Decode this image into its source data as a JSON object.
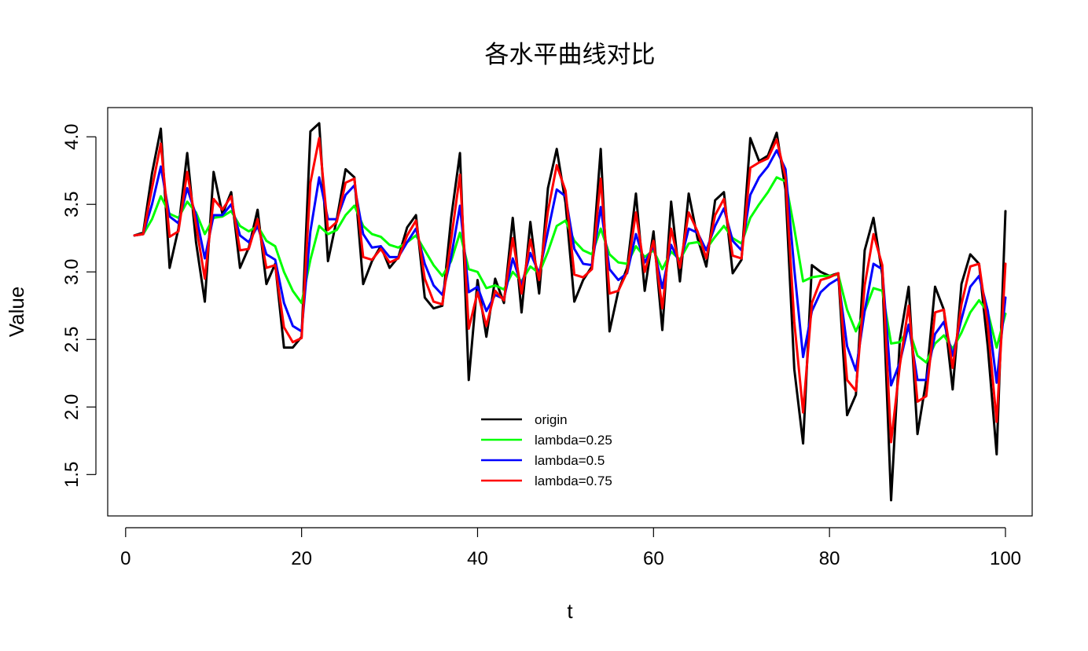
{
  "chart_data": {
    "type": "line",
    "title": "各水平曲线对比",
    "xlabel": "t",
    "ylabel": "Value",
    "xlim": [
      1,
      100
    ],
    "ylim": [
      1.31,
      4.1
    ],
    "x_ticks": [
      0,
      20,
      40,
      60,
      80,
      100
    ],
    "x_tick_labels": [
      "0",
      "20",
      "40",
      "60",
      "80",
      "100"
    ],
    "y_ticks": [
      1.5,
      2.0,
      2.5,
      3.0,
      3.5,
      4.0
    ],
    "y_tick_labels": [
      "1.5",
      "2.0",
      "2.5",
      "3.0",
      "3.5",
      "4.0"
    ],
    "legend_position": "bottom-center",
    "grid": false,
    "series": [
      {
        "name": "origin",
        "color": "#000000",
        "values": [
          3.27,
          3.29,
          3.73,
          4.06,
          3.03,
          3.32,
          3.88,
          3.22,
          2.78,
          3.74,
          3.43,
          3.59,
          3.03,
          3.18,
          3.46,
          2.91,
          3.06,
          2.44,
          2.44,
          2.52,
          4.04,
          4.1,
          3.08,
          3.39,
          3.76,
          3.7,
          2.91,
          3.08,
          3.19,
          3.03,
          3.11,
          3.33,
          3.42,
          2.81,
          2.73,
          2.75,
          3.4,
          3.88,
          2.2,
          2.94,
          2.52,
          2.95,
          2.77,
          3.4,
          2.7,
          3.37,
          2.84,
          3.62,
          3.91,
          3.51,
          2.78,
          2.94,
          3.04,
          3.91,
          2.56,
          2.86,
          3.03,
          3.58,
          2.86,
          3.3,
          2.57,
          3.52,
          2.93,
          3.58,
          3.25,
          3.04,
          3.53,
          3.59,
          2.99,
          3.09,
          3.99,
          3.82,
          3.86,
          4.03,
          3.61,
          2.28,
          1.73,
          3.05,
          3.0,
          2.97,
          2.99,
          1.94,
          2.09,
          3.16,
          3.4,
          2.98,
          1.31,
          2.5,
          2.89,
          1.8,
          2.2,
          2.89,
          2.72,
          2.13,
          2.91,
          3.13,
          3.06,
          2.44,
          1.65,
          3.45
        ]
      },
      {
        "name": "lambda=0.25",
        "color": "#00ff00",
        "values": [
          3.27,
          3.28,
          3.39,
          3.56,
          3.43,
          3.4,
          3.52,
          3.44,
          3.28,
          3.4,
          3.41,
          3.45,
          3.34,
          3.3,
          3.34,
          3.23,
          3.19,
          3.0,
          2.86,
          2.77,
          3.09,
          3.34,
          3.28,
          3.31,
          3.42,
          3.49,
          3.34,
          3.28,
          3.26,
          3.2,
          3.18,
          3.22,
          3.27,
          3.16,
          3.05,
          2.97,
          3.08,
          3.29,
          3.02,
          3.0,
          2.88,
          2.9,
          2.87,
          3.0,
          2.93,
          3.04,
          2.99,
          3.15,
          3.34,
          3.38,
          3.23,
          3.16,
          3.13,
          3.32,
          3.13,
          3.07,
          3.06,
          3.19,
          3.11,
          3.16,
          3.02,
          3.15,
          3.09,
          3.21,
          3.22,
          3.17,
          3.26,
          3.34,
          3.25,
          3.21,
          3.4,
          3.5,
          3.59,
          3.7,
          3.67,
          3.32,
          2.93,
          2.96,
          2.97,
          2.97,
          2.98,
          2.72,
          2.56,
          2.71,
          2.88,
          2.86,
          2.47,
          2.48,
          2.58,
          2.38,
          2.33,
          2.47,
          2.53,
          2.43,
          2.55,
          2.7,
          2.79,
          2.7,
          2.44,
          2.69
        ]
      },
      {
        "name": "lambda=0.5",
        "color": "#0000ff",
        "values": [
          3.27,
          3.28,
          3.5,
          3.78,
          3.41,
          3.36,
          3.62,
          3.42,
          3.1,
          3.42,
          3.42,
          3.5,
          3.27,
          3.22,
          3.34,
          3.13,
          3.09,
          2.77,
          2.6,
          2.56,
          3.3,
          3.7,
          3.39,
          3.39,
          3.57,
          3.64,
          3.28,
          3.18,
          3.19,
          3.11,
          3.11,
          3.22,
          3.32,
          3.06,
          2.9,
          2.83,
          3.11,
          3.49,
          2.85,
          2.89,
          2.71,
          2.83,
          2.8,
          3.1,
          2.9,
          3.14,
          2.99,
          3.3,
          3.61,
          3.56,
          3.17,
          3.06,
          3.05,
          3.48,
          3.02,
          2.94,
          2.99,
          3.28,
          3.07,
          3.19,
          2.88,
          3.2,
          3.06,
          3.32,
          3.29,
          3.16,
          3.34,
          3.47,
          3.23,
          3.16,
          3.57,
          3.7,
          3.78,
          3.9,
          3.76,
          3.02,
          2.37,
          2.71,
          2.85,
          2.91,
          2.95,
          2.45,
          2.27,
          2.71,
          3.06,
          3.02,
          2.16,
          2.33,
          2.61,
          2.2,
          2.2,
          2.54,
          2.63,
          2.38,
          2.65,
          2.89,
          2.97,
          2.71,
          2.18,
          2.81
        ]
      },
      {
        "name": "lambda=0.75",
        "color": "#ff0000",
        "values": [
          3.27,
          3.28,
          3.62,
          3.95,
          3.26,
          3.3,
          3.74,
          3.35,
          2.95,
          3.54,
          3.46,
          3.56,
          3.16,
          3.17,
          3.39,
          3.03,
          3.05,
          2.59,
          2.48,
          2.51,
          3.66,
          3.99,
          3.31,
          3.37,
          3.66,
          3.69,
          3.11,
          3.09,
          3.17,
          3.07,
          3.1,
          3.27,
          3.38,
          2.95,
          2.78,
          2.76,
          3.24,
          3.72,
          2.58,
          2.85,
          2.6,
          2.86,
          2.79,
          3.25,
          2.84,
          3.24,
          2.94,
          3.45,
          3.79,
          3.6,
          2.98,
          2.96,
          3.02,
          3.69,
          2.84,
          2.86,
          3.0,
          3.44,
          3.0,
          3.23,
          2.73,
          3.32,
          3.03,
          3.44,
          3.3,
          3.1,
          3.42,
          3.54,
          3.12,
          3.1,
          3.77,
          3.81,
          3.84,
          3.98,
          3.7,
          2.63,
          1.96,
          2.77,
          2.94,
          2.96,
          2.99,
          2.2,
          2.12,
          2.9,
          3.28,
          3.05,
          1.74,
          2.31,
          2.75,
          2.04,
          2.08,
          2.7,
          2.72,
          2.29,
          2.76,
          3.04,
          3.06,
          2.6,
          1.89,
          3.06
        ]
      }
    ]
  }
}
